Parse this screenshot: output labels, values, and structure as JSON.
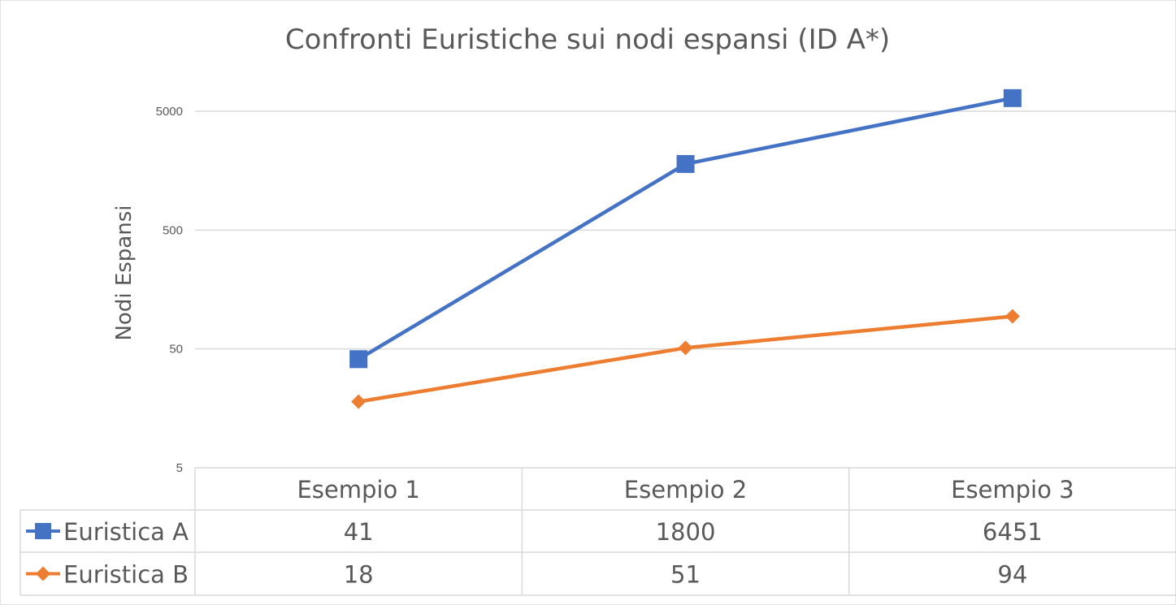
{
  "chart_data": {
    "type": "line",
    "title": "Confronti Euristiche sui nodi espansi (ID A*)",
    "xlabel": "",
    "ylabel": "Nodi  Espansi",
    "y_scale": "log",
    "ylim": [
      5,
      10000
    ],
    "y_ticks": [
      5,
      50,
      500,
      5000
    ],
    "y_tick_labels": [
      "5",
      "50",
      "500",
      "5000"
    ],
    "grid": true,
    "legend": "data-table",
    "categories": [
      "Esempio 1",
      "Esempio 2",
      "Esempio 3"
    ],
    "series": [
      {
        "name": "Euristica A",
        "color": "#4472C4",
        "marker": "square",
        "values": [
          41,
          1800,
          6451
        ],
        "value_labels": [
          "41",
          "1800",
          "6451"
        ]
      },
      {
        "name": "Euristica B",
        "color": "#ED7D31",
        "marker": "diamond",
        "values": [
          18,
          51,
          94
        ],
        "value_labels": [
          "18",
          "51",
          "94"
        ]
      }
    ]
  }
}
